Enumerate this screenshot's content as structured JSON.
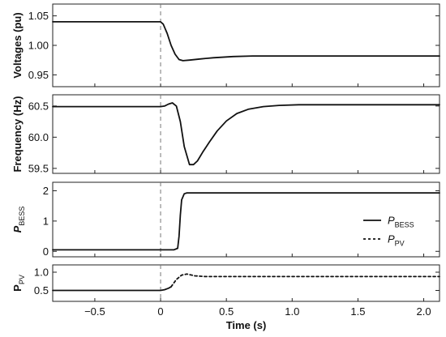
{
  "chart_data": [
    {
      "type": "line",
      "ylabel": "Voltages (pu)",
      "ylim": [
        0.93,
        1.07
      ],
      "yticks": [
        0.95,
        1.0,
        1.05
      ],
      "ytick_labels": [
        "0.95",
        "1.00",
        "1.05"
      ],
      "xlim": [
        -0.82,
        2.12
      ],
      "series": [
        {
          "style": "solid",
          "x": [
            -0.82,
            0.0,
            0.02,
            0.05,
            0.08,
            0.11,
            0.14,
            0.17,
            0.22,
            0.3,
            0.4,
            0.55,
            0.7,
            0.85,
            1.0,
            1.3,
            1.6,
            2.12
          ],
          "y": [
            1.04,
            1.04,
            1.036,
            1.02,
            1.0,
            0.985,
            0.976,
            0.974,
            0.975,
            0.977,
            0.979,
            0.981,
            0.982,
            0.982,
            0.982,
            0.982,
            0.982,
            0.982
          ]
        }
      ]
    },
    {
      "type": "line",
      "ylabel": "Frequency (Hz)",
      "ylim": [
        59.42,
        60.68
      ],
      "yticks": [
        59.5,
        60.0,
        60.5
      ],
      "ytick_labels": [
        "59.5",
        "60.0",
        "60.5"
      ],
      "xlim": [
        -0.82,
        2.12
      ],
      "series": [
        {
          "style": "solid",
          "x": [
            -0.82,
            0.0,
            0.03,
            0.06,
            0.09,
            0.12,
            0.15,
            0.18,
            0.22,
            0.25,
            0.28,
            0.32,
            0.37,
            0.43,
            0.5,
            0.58,
            0.67,
            0.78,
            0.9,
            1.05,
            1.3,
            2.12
          ],
          "y": [
            60.49,
            60.49,
            60.5,
            60.53,
            60.55,
            60.5,
            60.25,
            59.85,
            59.56,
            59.56,
            59.62,
            59.76,
            59.92,
            60.1,
            60.26,
            60.38,
            60.45,
            60.49,
            60.51,
            60.52,
            60.52,
            60.52
          ]
        }
      ]
    },
    {
      "type": "line",
      "ylabel": "P",
      "ylabel_sub": "BESS",
      "ylim": [
        -0.18,
        2.28
      ],
      "yticks": [
        0,
        1,
        2
      ],
      "ytick_labels": [
        "0",
        "1",
        "2"
      ],
      "xlim": [
        -0.82,
        2.12
      ],
      "legend": {
        "position": "right",
        "entries": [
          {
            "name": "P",
            "sub": "BESS",
            "style": "solid"
          },
          {
            "name": "P",
            "sub": "PV",
            "style": "dashed"
          }
        ]
      },
      "series": [
        {
          "style": "solid",
          "x": [
            -0.82,
            0.0,
            0.1,
            0.13,
            0.14,
            0.15,
            0.16,
            0.18,
            0.2,
            2.12
          ],
          "y": [
            0.05,
            0.05,
            0.05,
            0.1,
            0.5,
            1.2,
            1.7,
            1.9,
            1.93,
            1.93
          ]
        }
      ]
    },
    {
      "type": "line",
      "ylabel": "P",
      "ylabel_sub": "PV",
      "ylim": [
        0.2,
        1.2
      ],
      "yticks": [
        0.5,
        1.0
      ],
      "ytick_labels": [
        "0.5",
        "1.0"
      ],
      "xlim": [
        -0.82,
        2.12
      ],
      "xticks": [
        -0.5,
        0,
        0.5,
        1.0,
        1.5,
        2.0
      ],
      "xtick_labels": [
        "−0.5",
        "0",
        "0.5",
        "1.0",
        "1.5",
        "2.0"
      ],
      "xlabel": "Time (s)",
      "series": [
        {
          "style": "solid",
          "x": [
            -0.82,
            0.0,
            0.03,
            0.06,
            0.08
          ],
          "y": [
            0.5,
            0.5,
            0.52,
            0.56,
            0.6
          ]
        },
        {
          "style": "dashed",
          "x": [
            0.08,
            0.12,
            0.16,
            0.2,
            0.26,
            0.34,
            2.12
          ],
          "y": [
            0.6,
            0.8,
            0.92,
            0.95,
            0.9,
            0.88,
            0.88
          ]
        }
      ]
    }
  ]
}
